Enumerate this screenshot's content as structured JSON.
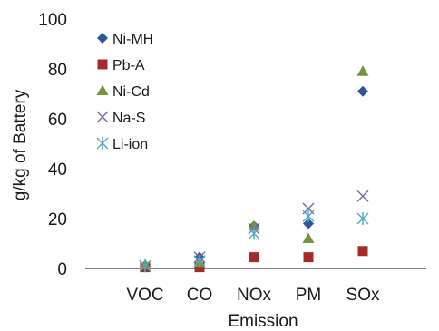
{
  "chart_data": {
    "type": "scatter",
    "title": "",
    "xlabel": "Emission",
    "ylabel": "g/kg of Battery",
    "categories": [
      "VOC",
      "CO",
      "NOx",
      "PM",
      "SOx"
    ],
    "ylim": [
      0,
      100
    ],
    "yticks": [
      "0",
      "20",
      "40",
      "60",
      "80",
      "100"
    ],
    "grid": false,
    "legend_position": "top-left",
    "series": [
      {
        "name": "Ni-MH",
        "marker": "diamond",
        "color": "#2e5597",
        "values": [
          1,
          4.5,
          17,
          18,
          71
        ]
      },
      {
        "name": "Pb-A",
        "marker": "square",
        "color": "#a52a2a",
        "values": [
          0.5,
          0.5,
          4.5,
          4.5,
          7
        ]
      },
      {
        "name": "Ni-Cd",
        "marker": "triangle",
        "color": "#77933c",
        "values": [
          1.5,
          2.5,
          17,
          12,
          79
        ]
      },
      {
        "name": "Na-S",
        "marker": "x",
        "color": "#8064a2",
        "values": [
          1,
          4.5,
          16,
          24,
          29
        ]
      },
      {
        "name": "Li-ion",
        "marker": "asterisk",
        "color": "#4bacc6",
        "values": [
          1,
          3,
          14,
          21,
          20
        ]
      }
    ]
  }
}
